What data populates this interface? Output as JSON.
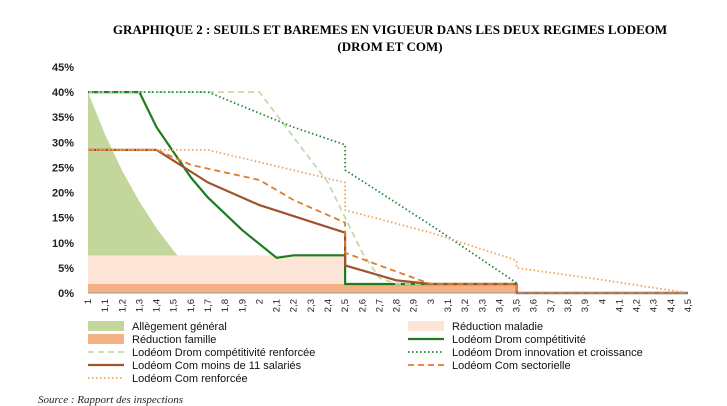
{
  "title_line1": "GRAPHIQUE 2 : SEUILS ET BAREMES EN VIGUEUR DANS LES DEUX REGIMES LODEOM",
  "title_line2": "(DROM ET COM)",
  "source": "Source : Rapport des inspections",
  "chart_data": {
    "type": "area",
    "xlim": [
      1,
      4.5
    ],
    "ylim": [
      0,
      45
    ],
    "y_ticks": [
      "0%",
      "5%",
      "10%",
      "15%",
      "20%",
      "25%",
      "30%",
      "35%",
      "40%",
      "45%"
    ],
    "x_ticks": [
      "1",
      "1,1",
      "1,2",
      "1,3",
      "1,4",
      "1,5",
      "1,6",
      "1,7",
      "1,8",
      "1,9",
      "2",
      "2,1",
      "2,2",
      "2,3",
      "2,4",
      "2,5",
      "2,6",
      "2,7",
      "2,8",
      "2,9",
      "3",
      "3,1",
      "3,2",
      "3,3",
      "3,4",
      "3,5",
      "3,6",
      "3,7",
      "3,8",
      "3,9",
      "4",
      "4,1",
      "4,2",
      "4,3",
      "4,4",
      "4,5"
    ],
    "grid": false,
    "legend_position": "bottom",
    "series": [
      {
        "name": "Allègement général",
        "kind": "area",
        "color": "#c3d69b",
        "points": [
          [
            1,
            40
          ],
          [
            1.1,
            31.5
          ],
          [
            1.2,
            24.3
          ],
          [
            1.3,
            18.2
          ],
          [
            1.4,
            12.9
          ],
          [
            1.5,
            8.4
          ],
          [
            1.6,
            4.3
          ]
        ]
      },
      {
        "name": "Réduction maladie",
        "kind": "area",
        "color": "#fce4d6",
        "points": [
          [
            1,
            7.5
          ],
          [
            2.5,
            7.5
          ]
        ]
      },
      {
        "name": "Réduction famille",
        "kind": "area",
        "color": "#f4b183",
        "points": [
          [
            1,
            1.8
          ],
          [
            3.5,
            1.8
          ]
        ]
      },
      {
        "name": "Lodéom Drom compétitivité",
        "kind": "line",
        "color": "#1e7b1e",
        "dash": "solid",
        "points": [
          [
            1,
            40
          ],
          [
            1.3,
            40
          ],
          [
            1.4,
            33
          ],
          [
            1.6,
            23
          ],
          [
            1.7,
            19
          ],
          [
            1.9,
            12.5
          ],
          [
            2.1,
            7
          ],
          [
            2.2,
            7.5
          ],
          [
            2.5,
            7.5
          ],
          [
            2.5,
            1.8
          ],
          [
            3.5,
            1.8
          ],
          [
            3.5,
            0
          ],
          [
            4.5,
            0
          ]
        ]
      },
      {
        "name": "Lodéom Drom compétitivité renforcée",
        "kind": "line",
        "color": "#c4dca6",
        "dash": "dash",
        "points": [
          [
            1,
            40
          ],
          [
            2,
            40
          ],
          [
            2.4,
            22
          ],
          [
            2.5,
            15
          ],
          [
            2.6,
            8
          ],
          [
            2.7,
            3
          ],
          [
            2.8,
            1.8
          ],
          [
            3.5,
            1.8
          ],
          [
            3.5,
            0
          ],
          [
            4.5,
            0
          ]
        ]
      },
      {
        "name": "Lodéom Drom innovation et croissance",
        "kind": "line",
        "color": "#1f8a3c",
        "dash": "dot",
        "points": [
          [
            1,
            40
          ],
          [
            1.7,
            40
          ],
          [
            2.2,
            33
          ],
          [
            2.5,
            29.5
          ],
          [
            2.5,
            24.5
          ],
          [
            3,
            13.5
          ],
          [
            3.5,
            2
          ],
          [
            3.5,
            0
          ],
          [
            4.5,
            0
          ]
        ]
      },
      {
        "name": "Lodéom Com moins de 11 salariés",
        "kind": "line",
        "color": "#a0522d",
        "dash": "solid",
        "points": [
          [
            1,
            28.5
          ],
          [
            1.4,
            28.5
          ],
          [
            1.7,
            22
          ],
          [
            2,
            17.5
          ],
          [
            2.3,
            14.2
          ],
          [
            2.5,
            12
          ],
          [
            2.5,
            5.5
          ],
          [
            2.8,
            2.5
          ],
          [
            3,
            1.8
          ],
          [
            3.5,
            1.8
          ],
          [
            3.5,
            0
          ],
          [
            4.5,
            0
          ]
        ]
      },
      {
        "name": "Lodéom Com sectorielle",
        "kind": "line",
        "color": "#e07b2a",
        "dash": "dash",
        "points": [
          [
            1,
            28.5
          ],
          [
            1.4,
            28.5
          ],
          [
            1.6,
            25.5
          ],
          [
            2,
            22.5
          ],
          [
            2.2,
            18.5
          ],
          [
            2.4,
            15.5
          ],
          [
            2.5,
            14
          ],
          [
            2.5,
            8
          ],
          [
            2.9,
            3
          ],
          [
            3,
            1.8
          ],
          [
            3.5,
            1.8
          ],
          [
            3.5,
            0
          ],
          [
            4.5,
            0
          ]
        ]
      },
      {
        "name": "Lodéom Com renforcée",
        "kind": "line",
        "color": "#f0a45a",
        "dash": "dot",
        "points": [
          [
            1,
            28.5
          ],
          [
            1.7,
            28.5
          ],
          [
            2.5,
            22
          ],
          [
            2.5,
            16.5
          ],
          [
            3,
            12
          ],
          [
            3.5,
            6.5
          ],
          [
            3.5,
            5
          ],
          [
            4,
            2.6
          ],
          [
            4.5,
            0
          ]
        ]
      }
    ]
  },
  "legend": [
    {
      "name": "Allègement général",
      "symbol": "box",
      "color": "#c3d69b"
    },
    {
      "name": "Réduction maladie",
      "symbol": "box",
      "color": "#fce4d6"
    },
    {
      "name": "Réduction famille",
      "symbol": "box",
      "color": "#f4b183"
    },
    {
      "name": "Lodéom Drom compétitivité",
      "symbol": "solid",
      "color": "#1e7b1e"
    },
    {
      "name": "Lodéom Drom compétitivité renforcée",
      "symbol": "dash",
      "color": "#c4dca6"
    },
    {
      "name": "Lodéom Drom innovation et croissance",
      "symbol": "dot",
      "color": "#1f8a3c"
    },
    {
      "name": "Lodéom Com moins de 11 salariés",
      "symbol": "solid",
      "color": "#a0522d"
    },
    {
      "name": "Lodéom Com sectorielle",
      "symbol": "dash",
      "color": "#e07b2a"
    },
    {
      "name": "Lodéom Com renforcée",
      "symbol": "dot",
      "color": "#f0a45a"
    }
  ]
}
